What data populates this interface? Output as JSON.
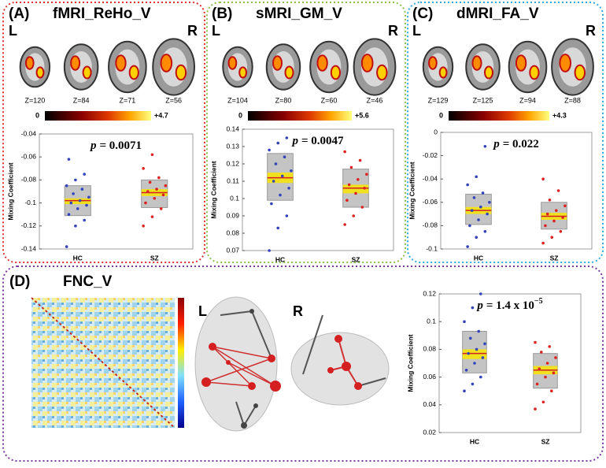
{
  "figure": {
    "panels": [
      {
        "label": "(A)",
        "title": "fMRI_ReHo_V",
        "left": "L",
        "right": "R",
        "slices": [
          "Z=120",
          "Z=84",
          "Z=71",
          "Z=56"
        ],
        "colorbar": [
          "0",
          "+4.7"
        ]
      },
      {
        "label": "(B)",
        "title": "sMRI_GM_V",
        "left": "L",
        "right": "R",
        "slices": [
          "Z=104",
          "Z=80",
          "Z=60",
          "Z=46"
        ],
        "colorbar": [
          "0",
          "+5.6"
        ]
      },
      {
        "label": "(C)",
        "title": "dMRI_FA_V",
        "left": "L",
        "right": "R",
        "slices": [
          "Z=129",
          "Z=125",
          "Z=94",
          "Z=88"
        ],
        "colorbar": [
          "0",
          "+4.3"
        ]
      },
      {
        "label": "(D)",
        "title": "FNC_V",
        "left": "L",
        "right": "R"
      }
    ]
  },
  "chart_data": [
    {
      "type": "box",
      "ylabel": "Mixing Coefficient",
      "annotation": {
        "symbol": "p",
        "text": "= 0.0071"
      },
      "categories": [
        "HC",
        "SZ"
      ],
      "ylim": [
        -0.14,
        -0.04
      ],
      "yticks": [
        -0.14,
        -0.12,
        -0.1,
        -0.08,
        -0.06,
        -0.04
      ],
      "series": [
        {
          "color": "#3344bb",
          "q1": -0.111,
          "q3": -0.085,
          "mean": -0.098,
          "ci": [
            -0.101,
            -0.096
          ],
          "values": [
            -0.138,
            -0.12,
            -0.115,
            -0.11,
            -0.105,
            -0.102,
            -0.1,
            -0.098,
            -0.095,
            -0.092,
            -0.088,
            -0.085,
            -0.08,
            -0.075,
            -0.062
          ]
        },
        {
          "color": "#dd2222",
          "q1": -0.104,
          "q3": -0.08,
          "mean": -0.091,
          "ci": [
            -0.094,
            -0.088
          ],
          "values": [
            -0.12,
            -0.112,
            -0.105,
            -0.1,
            -0.096,
            -0.093,
            -0.09,
            -0.088,
            -0.085,
            -0.082,
            -0.078,
            -0.07,
            -0.058
          ]
        }
      ]
    },
    {
      "type": "box",
      "ylabel": "Mixing Coefficient",
      "annotation": {
        "symbol": "p",
        "text": "= 0.0047"
      },
      "categories": [
        "HC",
        "SZ"
      ],
      "ylim": [
        0.07,
        0.14
      ],
      "yticks": [
        0.07,
        0.08,
        0.09,
        0.1,
        0.11,
        0.12,
        0.13,
        0.14
      ],
      "series": [
        {
          "color": "#3344bb",
          "q1": 0.099,
          "q3": 0.126,
          "mean": 0.112,
          "ci": [
            0.109,
            0.115
          ],
          "values": [
            0.07,
            0.083,
            0.09,
            0.097,
            0.102,
            0.106,
            0.11,
            0.113,
            0.116,
            0.12,
            0.124,
            0.128,
            0.132,
            0.135
          ]
        },
        {
          "color": "#dd2222",
          "q1": 0.095,
          "q3": 0.117,
          "mean": 0.106,
          "ci": [
            0.103,
            0.108
          ],
          "values": [
            0.085,
            0.09,
            0.095,
            0.099,
            0.103,
            0.106,
            0.108,
            0.111,
            0.114,
            0.118,
            0.122,
            0.127
          ]
        }
      ]
    },
    {
      "type": "box",
      "ylabel": "Mixing Coefficient",
      "annotation": {
        "symbol": "p",
        "text": "= 0.022"
      },
      "categories": [
        "HC",
        "SZ"
      ],
      "ylim": [
        -0.1,
        0
      ],
      "yticks": [
        -0.1,
        -0.08,
        -0.06,
        -0.04,
        -0.02,
        0
      ],
      "series": [
        {
          "color": "#3344bb",
          "q1": -0.079,
          "q3": -0.053,
          "mean": -0.067,
          "ci": [
            -0.07,
            -0.064
          ],
          "values": [
            -0.098,
            -0.09,
            -0.085,
            -0.08,
            -0.075,
            -0.07,
            -0.067,
            -0.064,
            -0.06,
            -0.056,
            -0.052,
            -0.045,
            -0.038,
            -0.012
          ]
        },
        {
          "color": "#dd2222",
          "q1": -0.083,
          "q3": -0.06,
          "mean": -0.072,
          "ci": [
            -0.075,
            -0.069
          ],
          "values": [
            -0.095,
            -0.09,
            -0.085,
            -0.08,
            -0.076,
            -0.073,
            -0.07,
            -0.067,
            -0.063,
            -0.058,
            -0.05,
            -0.04
          ]
        }
      ]
    },
    {
      "type": "box",
      "ylabel": "Mixing Coefficient",
      "annotation": {
        "symbol": "p",
        "text": "= 1.4 x 10",
        "sup": "−5"
      },
      "categories": [
        "HC",
        "SZ"
      ],
      "ylim": [
        0.02,
        0.12
      ],
      "yticks": [
        0.02,
        0.04,
        0.06,
        0.08,
        0.1,
        0.12
      ],
      "series": [
        {
          "color": "#3344bb",
          "q1": 0.063,
          "q3": 0.093,
          "mean": 0.077,
          "ci": [
            0.073,
            0.08
          ],
          "values": [
            0.05,
            0.055,
            0.06,
            0.065,
            0.07,
            0.074,
            0.077,
            0.08,
            0.084,
            0.088,
            0.093,
            0.1,
            0.11,
            0.12
          ]
        },
        {
          "color": "#dd2222",
          "q1": 0.052,
          "q3": 0.077,
          "mean": 0.065,
          "ci": [
            0.062,
            0.068
          ],
          "values": [
            0.037,
            0.042,
            0.05,
            0.055,
            0.06,
            0.063,
            0.066,
            0.07,
            0.074,
            0.078,
            0.082,
            0.085
          ]
        }
      ]
    }
  ]
}
